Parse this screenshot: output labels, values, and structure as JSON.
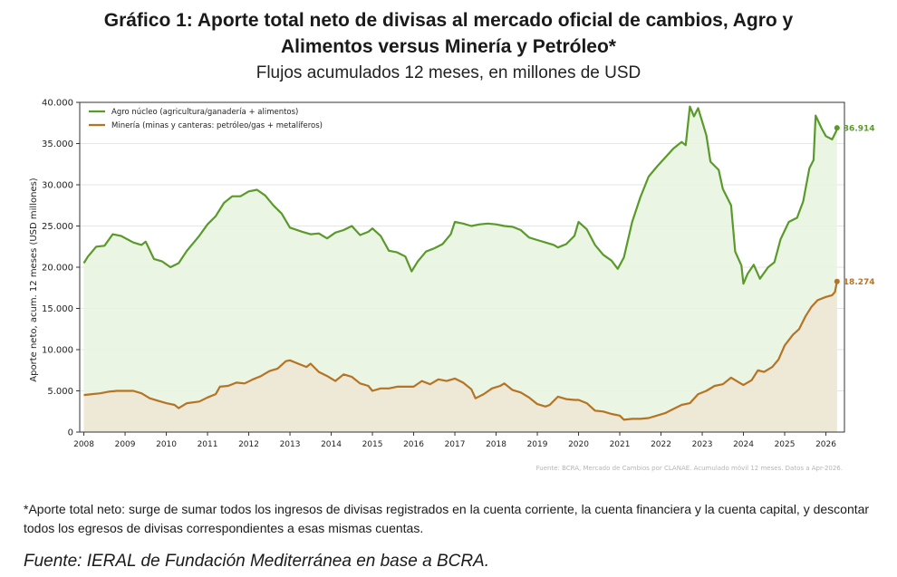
{
  "title_line1": "Gráfico 1: Aporte total neto de divisas al mercado oficial de cambios, Agro y",
  "title_line2": "Alimentos versus Minería y Petróleo*",
  "subtitle": "Flujos acumulados 12 meses, en millones de USD",
  "footnote": "*Aporte total neto: surge de sumar todos los ingresos de divisas registrados en la cuenta corriente, la cuenta financiera y la cuenta capital, y descontar todos los egresos de divisas correspondientes a esas mismas cuentas.",
  "fuente": "Fuente: IERAL de Fundación Mediterránea en base a BCRA.",
  "chart_data": {
    "type": "area",
    "ylabel": "Aporte neto, acum. 12 meses (USD millones)",
    "ylim": [
      0,
      40000
    ],
    "xlim": [
      2007.9,
      2026.45
    ],
    "yticks": [
      0,
      5000,
      10000,
      15000,
      20000,
      25000,
      30000,
      35000,
      40000
    ],
    "ytick_labels": [
      "0",
      "5.000",
      "10.000",
      "15.000",
      "20.000",
      "25.000",
      "30.000",
      "35.000",
      "40.000"
    ],
    "xticks": [
      2008,
      2009,
      2010,
      2011,
      2012,
      2013,
      2014,
      2015,
      2016,
      2017,
      2018,
      2019,
      2020,
      2021,
      2022,
      2023,
      2024,
      2025,
      2026
    ],
    "xtick_labels": [
      "2008",
      "2009",
      "2010",
      "2011",
      "2012",
      "2013",
      "2014",
      "2015",
      "2016",
      "2017",
      "2018",
      "2019",
      "2020",
      "2021",
      "2022",
      "2023",
      "2024",
      "2025",
      "2026"
    ],
    "grid": "horizontal",
    "legend_position": "top-left",
    "source_note": "Fuente: BCRA, Mercado de Cambios por CLANAE. Acumulado móvil 12 meses. Datos a Apr-2026.",
    "series": [
      {
        "name": "Agro núcleo (agricultura/ganadería + alimentos)",
        "color": "#5a9a2b",
        "fill": "#e8f3df",
        "end_label": "36.914",
        "points": [
          [
            2008.0,
            20500
          ],
          [
            2008.1,
            21300
          ],
          [
            2008.3,
            22500
          ],
          [
            2008.5,
            22600
          ],
          [
            2008.7,
            24000
          ],
          [
            2008.9,
            23800
          ],
          [
            2009.2,
            23000
          ],
          [
            2009.4,
            22700
          ],
          [
            2009.5,
            23100
          ],
          [
            2009.7,
            21000
          ],
          [
            2009.9,
            20700
          ],
          [
            2010.1,
            20000
          ],
          [
            2010.3,
            20500
          ],
          [
            2010.5,
            22000
          ],
          [
            2010.8,
            23800
          ],
          [
            2011.0,
            25200
          ],
          [
            2011.2,
            26200
          ],
          [
            2011.4,
            27800
          ],
          [
            2011.6,
            28600
          ],
          [
            2011.8,
            28600
          ],
          [
            2012.0,
            29200
          ],
          [
            2012.2,
            29400
          ],
          [
            2012.4,
            28700
          ],
          [
            2012.6,
            27500
          ],
          [
            2012.8,
            26500
          ],
          [
            2013.0,
            24800
          ],
          [
            2013.3,
            24300
          ],
          [
            2013.5,
            24000
          ],
          [
            2013.7,
            24100
          ],
          [
            2013.9,
            23500
          ],
          [
            2014.1,
            24200
          ],
          [
            2014.3,
            24500
          ],
          [
            2014.5,
            25000
          ],
          [
            2014.7,
            23900
          ],
          [
            2014.9,
            24300
          ],
          [
            2015.0,
            24700
          ],
          [
            2015.2,
            23800
          ],
          [
            2015.4,
            22000
          ],
          [
            2015.6,
            21800
          ],
          [
            2015.8,
            21300
          ],
          [
            2015.95,
            19500
          ],
          [
            2016.1,
            20700
          ],
          [
            2016.3,
            21900
          ],
          [
            2016.5,
            22300
          ],
          [
            2016.7,
            22800
          ],
          [
            2016.9,
            24000
          ],
          [
            2017.0,
            25500
          ],
          [
            2017.2,
            25300
          ],
          [
            2017.4,
            25000
          ],
          [
            2017.6,
            25200
          ],
          [
            2017.8,
            25300
          ],
          [
            2018.0,
            25200
          ],
          [
            2018.2,
            25000
          ],
          [
            2018.4,
            24900
          ],
          [
            2018.6,
            24500
          ],
          [
            2018.8,
            23600
          ],
          [
            2019.0,
            23300
          ],
          [
            2019.2,
            23000
          ],
          [
            2019.4,
            22700
          ],
          [
            2019.5,
            22400
          ],
          [
            2019.7,
            22800
          ],
          [
            2019.9,
            23800
          ],
          [
            2020.0,
            25500
          ],
          [
            2020.2,
            24600
          ],
          [
            2020.4,
            22700
          ],
          [
            2020.6,
            21500
          ],
          [
            2020.8,
            20800
          ],
          [
            2020.95,
            19800
          ],
          [
            2021.1,
            21200
          ],
          [
            2021.3,
            25500
          ],
          [
            2021.5,
            28500
          ],
          [
            2021.7,
            31000
          ],
          [
            2021.9,
            32200
          ],
          [
            2022.1,
            33300
          ],
          [
            2022.3,
            34400
          ],
          [
            2022.5,
            35200
          ],
          [
            2022.6,
            34800
          ],
          [
            2022.7,
            39500
          ],
          [
            2022.8,
            38300
          ],
          [
            2022.9,
            39300
          ],
          [
            2023.1,
            36000
          ],
          [
            2023.2,
            32800
          ],
          [
            2023.4,
            31800
          ],
          [
            2023.5,
            29500
          ],
          [
            2023.7,
            27500
          ],
          [
            2023.8,
            21900
          ],
          [
            2023.95,
            20200
          ],
          [
            2024.0,
            18000
          ],
          [
            2024.1,
            19200
          ],
          [
            2024.25,
            20300
          ],
          [
            2024.4,
            18600
          ],
          [
            2024.6,
            20000
          ],
          [
            2024.75,
            20600
          ],
          [
            2024.9,
            23400
          ],
          [
            2025.1,
            25500
          ],
          [
            2025.3,
            26000
          ],
          [
            2025.45,
            28000
          ],
          [
            2025.6,
            32000
          ],
          [
            2025.7,
            33000
          ],
          [
            2025.75,
            38400
          ],
          [
            2025.9,
            36800
          ],
          [
            2026.0,
            35900
          ],
          [
            2026.15,
            35500
          ],
          [
            2026.25,
            36500
          ],
          [
            2026.27,
            36914
          ]
        ]
      },
      {
        "name": "Minería (minas y canteras: petróleo/gas + metalíferos)",
        "color": "#b57323",
        "fill": "#efe5d5",
        "end_label": "18.274",
        "points": [
          [
            2008.0,
            4500
          ],
          [
            2008.2,
            4600
          ],
          [
            2008.4,
            4700
          ],
          [
            2008.6,
            4900
          ],
          [
            2008.8,
            5000
          ],
          [
            2009.0,
            5000
          ],
          [
            2009.2,
            5000
          ],
          [
            2009.4,
            4700
          ],
          [
            2009.6,
            4100
          ],
          [
            2009.8,
            3800
          ],
          [
            2010.0,
            3500
          ],
          [
            2010.2,
            3300
          ],
          [
            2010.3,
            2900
          ],
          [
            2010.5,
            3500
          ],
          [
            2010.8,
            3700
          ],
          [
            2011.0,
            4200
          ],
          [
            2011.2,
            4600
          ],
          [
            2011.3,
            5500
          ],
          [
            2011.5,
            5600
          ],
          [
            2011.7,
            6000
          ],
          [
            2011.9,
            5900
          ],
          [
            2012.1,
            6400
          ],
          [
            2012.3,
            6800
          ],
          [
            2012.5,
            7400
          ],
          [
            2012.7,
            7700
          ],
          [
            2012.9,
            8600
          ],
          [
            2013.0,
            8700
          ],
          [
            2013.2,
            8300
          ],
          [
            2013.4,
            7900
          ],
          [
            2013.5,
            8300
          ],
          [
            2013.7,
            7300
          ],
          [
            2013.9,
            6800
          ],
          [
            2014.1,
            6200
          ],
          [
            2014.3,
            7000
          ],
          [
            2014.5,
            6700
          ],
          [
            2014.7,
            5900
          ],
          [
            2014.9,
            5600
          ],
          [
            2015.0,
            5000
          ],
          [
            2015.2,
            5300
          ],
          [
            2015.4,
            5300
          ],
          [
            2015.6,
            5500
          ],
          [
            2015.8,
            5500
          ],
          [
            2016.0,
            5500
          ],
          [
            2016.2,
            6200
          ],
          [
            2016.4,
            5800
          ],
          [
            2016.6,
            6400
          ],
          [
            2016.8,
            6200
          ],
          [
            2017.0,
            6500
          ],
          [
            2017.2,
            6000
          ],
          [
            2017.4,
            5200
          ],
          [
            2017.5,
            4100
          ],
          [
            2017.7,
            4600
          ],
          [
            2017.9,
            5300
          ],
          [
            2018.1,
            5600
          ],
          [
            2018.2,
            5900
          ],
          [
            2018.4,
            5100
          ],
          [
            2018.6,
            4800
          ],
          [
            2018.8,
            4200
          ],
          [
            2019.0,
            3400
          ],
          [
            2019.2,
            3100
          ],
          [
            2019.3,
            3300
          ],
          [
            2019.5,
            4300
          ],
          [
            2019.7,
            4000
          ],
          [
            2019.9,
            3900
          ],
          [
            2020.0,
            3900
          ],
          [
            2020.2,
            3500
          ],
          [
            2020.4,
            2600
          ],
          [
            2020.6,
            2500
          ],
          [
            2020.8,
            2200
          ],
          [
            2021.0,
            2000
          ],
          [
            2021.1,
            1500
          ],
          [
            2021.3,
            1600
          ],
          [
            2021.5,
            1600
          ],
          [
            2021.7,
            1700
          ],
          [
            2021.9,
            2000
          ],
          [
            2022.1,
            2300
          ],
          [
            2022.3,
            2800
          ],
          [
            2022.5,
            3300
          ],
          [
            2022.7,
            3500
          ],
          [
            2022.9,
            4600
          ],
          [
            2023.1,
            5000
          ],
          [
            2023.3,
            5600
          ],
          [
            2023.5,
            5800
          ],
          [
            2023.7,
            6600
          ],
          [
            2023.9,
            6000
          ],
          [
            2024.0,
            5700
          ],
          [
            2024.2,
            6300
          ],
          [
            2024.35,
            7500
          ],
          [
            2024.5,
            7300
          ],
          [
            2024.7,
            7900
          ],
          [
            2024.85,
            8800
          ],
          [
            2025.0,
            10500
          ],
          [
            2025.2,
            11800
          ],
          [
            2025.35,
            12500
          ],
          [
            2025.5,
            14000
          ],
          [
            2025.65,
            15200
          ],
          [
            2025.8,
            16000
          ],
          [
            2026.0,
            16400
          ],
          [
            2026.15,
            16600
          ],
          [
            2026.22,
            17000
          ],
          [
            2026.27,
            18274
          ]
        ]
      }
    ]
  }
}
